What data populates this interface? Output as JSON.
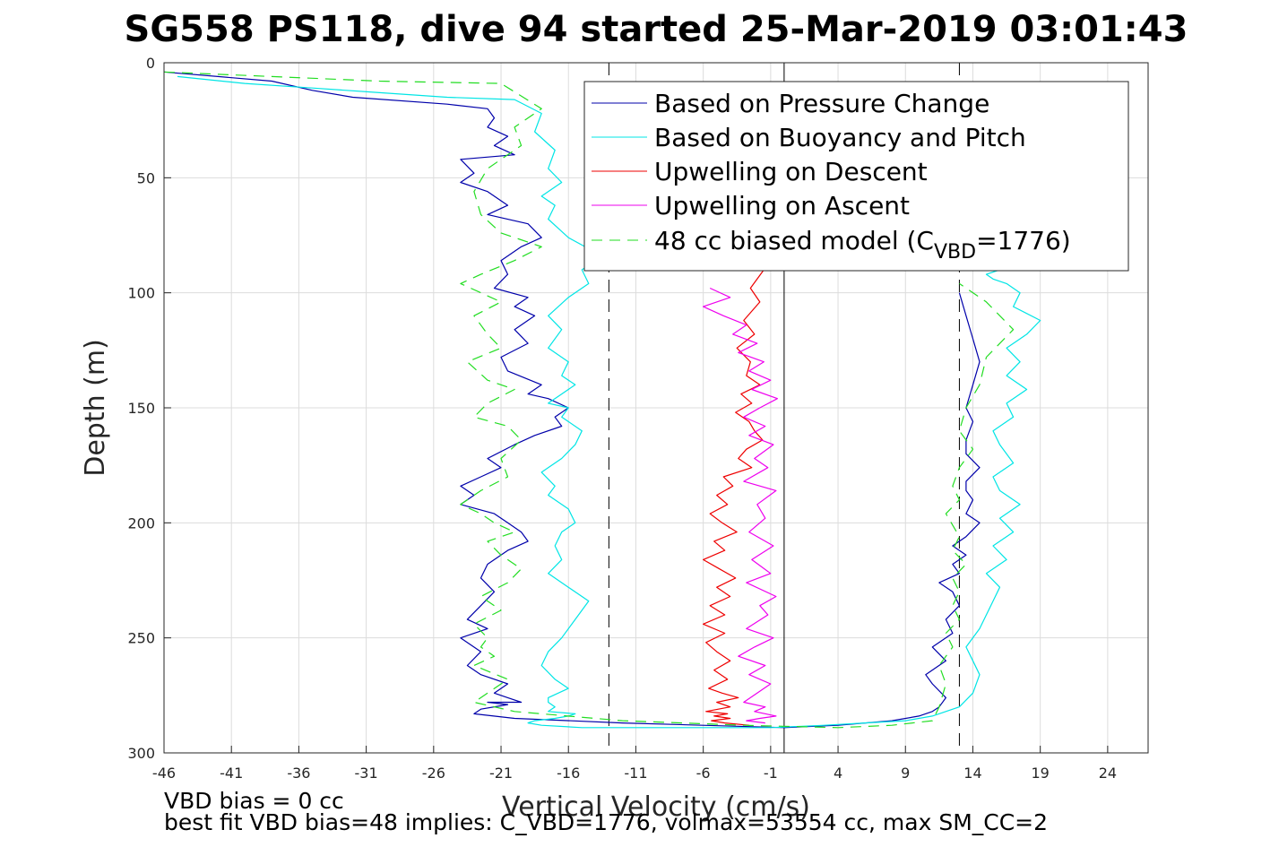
{
  "chart_data": {
    "type": "line",
    "title": "SG558 PS118, dive 94 started 25-Mar-2019 03:01:43",
    "xlabel": "Vertical Velocity (cm/s)",
    "ylabel": "Depth (m)",
    "xlim": [
      -46,
      27
    ],
    "ylim": [
      0,
      300
    ],
    "y_reversed": true,
    "grid": true,
    "legend_position": "top-right",
    "xticks": [
      "-46",
      "-41",
      "-36",
      "-31",
      "-26",
      "-21",
      "-16",
      "-11",
      "-6",
      "-1",
      "4",
      "9",
      "14",
      "19",
      "24"
    ],
    "yticks": [
      "0",
      "50",
      "100",
      "150",
      "200",
      "250",
      "300"
    ],
    "legend": {
      "series0": "Based on Pressure Change",
      "series1": "Based on Buoyancy and Pitch",
      "series2": "Upwelling on Descent",
      "series3": "Upwelling on Ascent",
      "series4_prefix": "48 cc biased model (C",
      "series4_sub": "VBD",
      "series4_suffix": "=1776)"
    },
    "series": [
      {
        "color": "#0000aa",
        "dash": "solid",
        "x": [
          -46,
          -38,
          -35,
          -32,
          -25,
          -22,
          -21.5,
          -22,
          -20.5,
          -21.5,
          -20,
          -24,
          -23,
          -24,
          -22,
          -20.5,
          -22,
          -19,
          -18,
          -19.5,
          -21,
          -20.5,
          -21.5,
          -19,
          -20,
          -18.5,
          -20,
          -19,
          -21,
          -20.5,
          -18,
          -19,
          -17.5,
          -16,
          -17,
          -16.5,
          -18.5,
          -20,
          -22,
          -21,
          -22.5,
          -24,
          -23,
          -24,
          -21.5,
          -20.5,
          -19.5,
          -19,
          -20.5,
          -22,
          -22.5,
          -21.5,
          -22.5,
          -23.5,
          -22,
          -24,
          -22.5,
          -23.5,
          -22.5,
          -20.5,
          -21.5,
          -20.5,
          -19.5,
          -20.5,
          -22,
          -20.5,
          -22.5,
          -23,
          -20,
          -12,
          0,
          4,
          8,
          10,
          11,
          11.5,
          12,
          11,
          10.5,
          12,
          11,
          12.5,
          12,
          13,
          12.5,
          11.5,
          13,
          12.5,
          13.5,
          12.5,
          13.5,
          14.5,
          13.5,
          14,
          13.5,
          13.5,
          14.5,
          13.5,
          13.5,
          14,
          13.5,
          14,
          14.5,
          14,
          13.5,
          13
        ],
        "y": [
          4,
          8,
          12,
          15,
          18,
          20,
          24,
          28,
          32,
          36,
          40,
          42,
          48,
          52,
          56,
          62,
          66,
          70,
          76,
          80,
          86,
          92,
          98,
          102,
          106,
          110,
          116,
          122,
          128,
          134,
          140,
          144,
          146,
          150,
          154,
          158,
          162,
          166,
          172,
          176,
          180,
          184,
          188,
          192,
          196,
          200,
          204,
          208,
          212,
          218,
          224,
          230,
          236,
          242,
          246,
          250,
          256,
          262,
          266,
          270,
          274,
          276,
          278,
          278,
          278,
          279,
          281,
          283,
          285,
          287,
          289,
          288,
          286,
          284,
          282,
          280,
          276,
          270,
          266,
          260,
          254,
          248,
          242,
          236,
          230,
          226,
          222,
          218,
          214,
          210,
          206,
          200,
          196,
          190,
          186,
          182,
          176,
          170,
          164,
          156,
          150,
          140,
          130,
          120,
          110,
          100
        ]
      },
      {
        "color": "#00e5e5",
        "dash": "solid",
        "x": [
          -45,
          -40,
          -35,
          -30,
          -25,
          -20,
          -18,
          -18.5,
          -17,
          -17.5,
          -16.5,
          -18,
          -17,
          -17.5,
          -16,
          -13.5,
          -15,
          -14.5,
          -16,
          -17.5,
          -16.5,
          -17.5,
          -16,
          -16.5,
          -15.5,
          -16.5,
          -17.5,
          -16,
          -16.5,
          -15,
          -15.5,
          -16.5,
          -18,
          -17,
          -17.5,
          -16,
          -15.5,
          -16.5,
          -17,
          -16.5,
          -17.5,
          -16,
          -14.5,
          -15.5,
          -16.5,
          -17.5,
          -18,
          -17,
          -16,
          -17.5,
          -17.5,
          -17,
          -17.5,
          -15.5,
          -16,
          -17,
          -18.5,
          -19,
          -18,
          -15,
          -8,
          -1,
          3,
          6,
          9,
          11,
          13,
          14,
          14.5,
          14,
          13.5,
          14.5,
          15,
          15.5,
          16,
          15,
          16.5,
          15.5,
          17,
          16,
          17.5,
          16,
          15.5,
          17,
          16,
          15.5,
          17,
          16.5,
          18,
          16.5,
          17.5,
          16.5,
          18,
          19,
          17,
          17.5,
          16.5,
          15.5,
          15,
          16
        ],
        "y": [
          6,
          9,
          11,
          13,
          15,
          16,
          22,
          30,
          38,
          46,
          52,
          58,
          62,
          68,
          76,
          84,
          90,
          96,
          102,
          110,
          116,
          124,
          130,
          136,
          140,
          144,
          148,
          150,
          154,
          160,
          166,
          172,
          178,
          184,
          188,
          194,
          200,
          204,
          210,
          216,
          222,
          228,
          234,
          242,
          250,
          256,
          262,
          268,
          272,
          276,
          278,
          280,
          282,
          283,
          284,
          285,
          286,
          287,
          288,
          289,
          289,
          289,
          288,
          287,
          286,
          284,
          280,
          274,
          266,
          260,
          254,
          246,
          240,
          234,
          228,
          222,
          216,
          210,
          204,
          198,
          192,
          186,
          180,
          174,
          166,
          160,
          154,
          148,
          142,
          136,
          130,
          124,
          118,
          112,
          106,
          100,
          96,
          94,
          92,
          90
        ]
      },
      {
        "color": "#ee0000",
        "dash": "solid",
        "x": [
          -1.5,
          -2.5,
          -1.8,
          -3,
          -2.2,
          -3.5,
          -2.5,
          -2.8,
          -1.8,
          -3.2,
          -2.4,
          -3.6,
          -2.6,
          -2.2,
          -1.6,
          -2.8,
          -3.4,
          -2.4,
          -4.5,
          -3.8,
          -5,
          -4.2,
          -5.5,
          -4.6,
          -3.5,
          -5.2,
          -4.4,
          -6,
          -4.8,
          -3.6,
          -5,
          -4,
          -5.5,
          -4.4,
          -6,
          -4.4,
          -5.8,
          -5,
          -4,
          -5.2,
          -4.2,
          -5.6,
          -4.6,
          -3.4,
          -5,
          -4,
          -5.8,
          -4.2,
          -5.2,
          -4,
          -5.4,
          -4.4,
          -2.6
        ],
        "y": [
          90,
          98,
          104,
          112,
          118,
          124,
          130,
          136,
          140,
          144,
          148,
          152,
          156,
          160,
          164,
          168,
          172,
          176,
          180,
          184,
          188,
          192,
          196,
          200,
          204,
          208,
          212,
          216,
          220,
          224,
          228,
          232,
          236,
          240,
          244,
          248,
          252,
          256,
          260,
          264,
          268,
          272,
          274,
          276,
          278,
          280,
          282,
          283,
          284,
          285,
          286,
          287,
          288
        ]
      },
      {
        "color": "#ee00ee",
        "dash": "solid",
        "x": [
          -5.5,
          -4,
          -6,
          -4.5,
          -2.8,
          -3.8,
          -2,
          -3.4,
          -1.5,
          -2.6,
          -1,
          -2.4,
          -0.5,
          -1.8,
          -3,
          -1.4,
          -2.6,
          -0.8,
          -2.2,
          -1.2,
          -3,
          -0.6,
          -2,
          -1.4,
          -2.6,
          -0.8,
          -2.4,
          -1,
          -2.8,
          -0.6,
          -1.8,
          -1.2,
          -2.8,
          -0.8,
          -2.2,
          -3.4,
          -1.4,
          -2.6,
          -1,
          -2,
          -3,
          -1.4,
          -2.2,
          -0.6,
          -1.8,
          -2.8,
          -1.4
        ],
        "y": [
          98,
          102,
          106,
          110,
          114,
          118,
          122,
          126,
          130,
          134,
          138,
          142,
          146,
          150,
          154,
          158,
          162,
          166,
          172,
          176,
          182,
          186,
          192,
          198,
          204,
          210,
          216,
          222,
          226,
          232,
          236,
          240,
          246,
          250,
          254,
          258,
          262,
          266,
          270,
          274,
          278,
          280,
          282,
          284,
          285,
          286,
          287
        ]
      },
      {
        "color": "#22dd22",
        "dash": "dashed",
        "x": [
          -46,
          -38,
          -30,
          -21,
          -18,
          -20,
          -19.5,
          -22,
          -23,
          -22.5,
          -21,
          -18,
          -20,
          -22.5,
          -24,
          -21,
          -23,
          -22,
          -21,
          -23.5,
          -22,
          -20,
          -22,
          -23,
          -20.5,
          -19.5,
          -21,
          -20.5,
          -22.5,
          -24,
          -22.5,
          -21.5,
          -20,
          -22,
          -21,
          -19.5,
          -20.5,
          -22.5,
          -21,
          -23,
          -22,
          -22.5,
          -21.5,
          -23,
          -20.5,
          -22,
          -23,
          -20,
          -12,
          -3,
          4,
          8,
          11,
          11.5,
          12,
          11.5,
          12.5,
          12,
          13,
          12.5,
          13,
          12.5,
          13.5,
          12.5,
          13,
          12,
          13,
          12.5,
          13,
          14,
          13,
          13.5,
          14.5,
          15,
          17,
          15,
          13
        ],
        "y": [
          4,
          6,
          8,
          9,
          20,
          28,
          36,
          46,
          56,
          66,
          74,
          80,
          86,
          92,
          96,
          104,
          110,
          118,
          124,
          130,
          138,
          142,
          148,
          154,
          158,
          164,
          172,
          180,
          186,
          192,
          196,
          200,
          204,
          208,
          214,
          220,
          226,
          232,
          238,
          244,
          250,
          254,
          258,
          262,
          268,
          274,
          278,
          282,
          286,
          288,
          289,
          288,
          286,
          280,
          270,
          262,
          254,
          248,
          242,
          236,
          230,
          224,
          218,
          212,
          206,
          196,
          190,
          184,
          176,
          168,
          160,
          150,
          140,
          128,
          116,
          104,
          96
        ]
      }
    ],
    "vertical_lines": [
      {
        "x": -13,
        "style": "dashed"
      },
      {
        "x": 0,
        "style": "solid"
      },
      {
        "x": 13,
        "style": "dashed"
      }
    ],
    "annotations": [
      "VBD bias = 0 cc",
      "best fit VBD bias=48 implies: C_VBD=1776, volmax=53554 cc, max SM_CC=2"
    ]
  }
}
